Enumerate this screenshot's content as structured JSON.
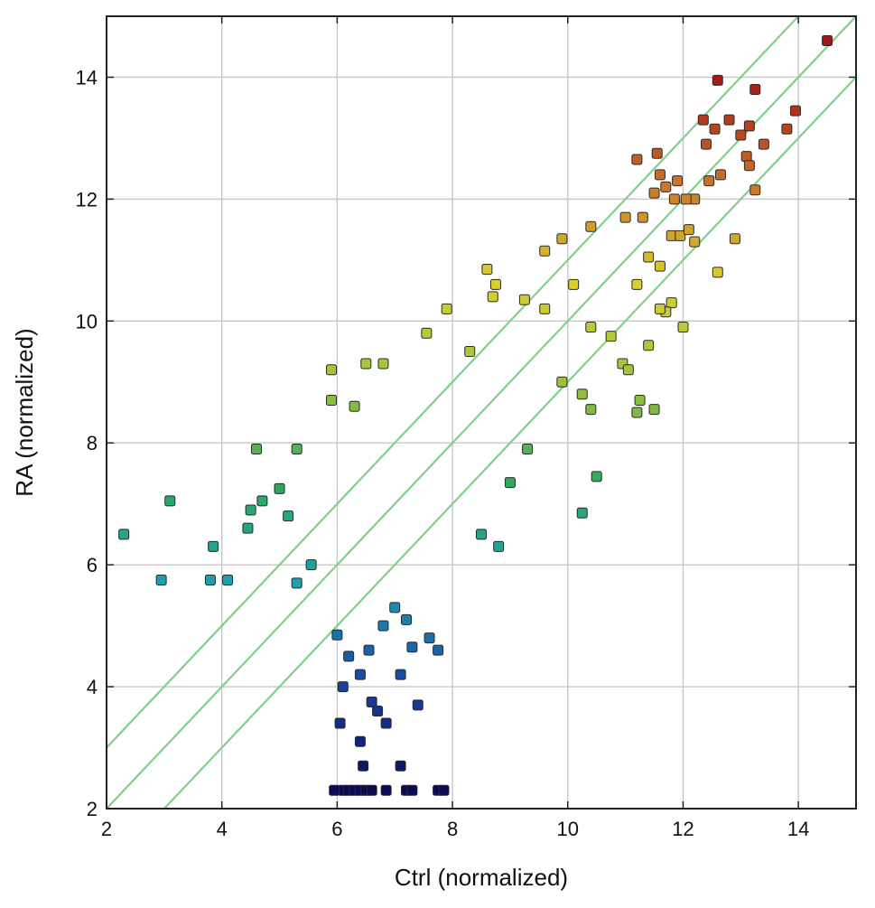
{
  "chart_data": {
    "type": "scatter",
    "title": "",
    "xlabel": "Ctrl (normalized)",
    "ylabel": "RA (normalized)",
    "xlim": [
      2,
      15
    ],
    "ylim": [
      2,
      15
    ],
    "xticks": [
      2,
      4,
      6,
      8,
      10,
      12,
      14
    ],
    "yticks": [
      2,
      4,
      6,
      8,
      10,
      12,
      14
    ],
    "xtick_labels": [
      "2",
      "4",
      "6",
      "8",
      "10",
      "12",
      "14"
    ],
    "ytick_labels": [
      "2",
      "4",
      "6",
      "8",
      "10",
      "12",
      "14"
    ],
    "grid": true,
    "marker": "square",
    "color_by": "y",
    "colormap": [
      "#0b0b55",
      "#1a3fa0",
      "#1c9fb0",
      "#2ea860",
      "#9cc23a",
      "#d8d030",
      "#c8702a",
      "#a01818"
    ],
    "reference_lines": [
      {
        "slope": 1,
        "intercept": 1,
        "color": "#7fd08a"
      },
      {
        "slope": 1,
        "intercept": 0,
        "color": "#7fd08a"
      },
      {
        "slope": 1,
        "intercept": -1,
        "color": "#7fd08a"
      }
    ],
    "points": [
      [
        14.5,
        14.6
      ],
      [
        12.6,
        13.95
      ],
      [
        13.25,
        13.8
      ],
      [
        12.35,
        13.3
      ],
      [
        12.8,
        13.3
      ],
      [
        13.95,
        13.45
      ],
      [
        12.55,
        13.15
      ],
      [
        13.0,
        13.05
      ],
      [
        13.15,
        13.2
      ],
      [
        13.8,
        13.15
      ],
      [
        11.2,
        12.65
      ],
      [
        11.55,
        12.75
      ],
      [
        13.1,
        12.7
      ],
      [
        13.4,
        12.9
      ],
      [
        12.4,
        12.9
      ],
      [
        13.15,
        12.55
      ],
      [
        11.6,
        12.4
      ],
      [
        11.9,
        12.3
      ],
      [
        12.2,
        12.0
      ],
      [
        12.45,
        12.3
      ],
      [
        12.65,
        12.4
      ],
      [
        13.25,
        12.15
      ],
      [
        11.7,
        12.2
      ],
      [
        12.05,
        12.0
      ],
      [
        11.85,
        12.0
      ],
      [
        11.5,
        12.1
      ],
      [
        11.3,
        11.7
      ],
      [
        11.0,
        11.7
      ],
      [
        11.8,
        11.4
      ],
      [
        12.2,
        11.3
      ],
      [
        12.9,
        11.35
      ],
      [
        11.95,
        11.4
      ],
      [
        11.4,
        11.05
      ],
      [
        11.6,
        10.9
      ],
      [
        12.6,
        10.8
      ],
      [
        12.1,
        11.5
      ],
      [
        11.2,
        10.6
      ],
      [
        11.8,
        10.3
      ],
      [
        12.0,
        9.9
      ],
      [
        11.7,
        10.15
      ],
      [
        11.6,
        10.2
      ],
      [
        11.4,
        9.6
      ],
      [
        10.95,
        9.3
      ],
      [
        11.05,
        9.2
      ],
      [
        11.25,
        8.7
      ],
      [
        11.5,
        8.55
      ],
      [
        11.2,
        8.5
      ],
      [
        10.75,
        9.75
      ],
      [
        10.4,
        9.9
      ],
      [
        9.6,
        11.15
      ],
      [
        9.9,
        11.35
      ],
      [
        10.4,
        11.55
      ],
      [
        10.1,
        10.6
      ],
      [
        9.6,
        10.2
      ],
      [
        9.25,
        10.35
      ],
      [
        8.6,
        10.85
      ],
      [
        8.75,
        10.6
      ],
      [
        8.7,
        10.4
      ],
      [
        7.9,
        10.2
      ],
      [
        7.55,
        9.8
      ],
      [
        8.3,
        9.5
      ],
      [
        9.9,
        9.0
      ],
      [
        10.4,
        8.55
      ],
      [
        10.25,
        8.8
      ],
      [
        10.5,
        7.45
      ],
      [
        10.25,
        6.85
      ],
      [
        9.3,
        7.9
      ],
      [
        9.0,
        7.35
      ],
      [
        8.5,
        6.5
      ],
      [
        8.8,
        6.3
      ],
      [
        6.5,
        9.3
      ],
      [
        6.8,
        9.3
      ],
      [
        5.9,
        9.2
      ],
      [
        5.9,
        8.7
      ],
      [
        6.3,
        8.6
      ],
      [
        4.6,
        7.9
      ],
      [
        5.3,
        7.9
      ],
      [
        5.0,
        7.25
      ],
      [
        4.7,
        7.05
      ],
      [
        4.5,
        6.9
      ],
      [
        3.1,
        7.05
      ],
      [
        2.3,
        6.5
      ],
      [
        3.85,
        6.3
      ],
      [
        2.95,
        5.75
      ],
      [
        3.8,
        5.75
      ],
      [
        4.1,
        5.75
      ],
      [
        4.45,
        6.6
      ],
      [
        5.15,
        6.8
      ],
      [
        5.55,
        6.0
      ],
      [
        5.3,
        5.7
      ],
      [
        6.0,
        4.85
      ],
      [
        6.2,
        4.5
      ],
      [
        6.4,
        4.2
      ],
      [
        6.1,
        4.0
      ],
      [
        6.6,
        3.75
      ],
      [
        6.7,
        3.6
      ],
      [
        6.85,
        3.4
      ],
      [
        6.05,
        3.4
      ],
      [
        6.4,
        3.1
      ],
      [
        6.45,
        2.7
      ],
      [
        7.1,
        2.7
      ],
      [
        7.4,
        3.7
      ],
      [
        7.1,
        4.2
      ],
      [
        7.3,
        4.65
      ],
      [
        7.6,
        4.8
      ],
      [
        7.75,
        4.6
      ],
      [
        7.2,
        5.1
      ],
      [
        7.0,
        5.3
      ],
      [
        6.8,
        5.0
      ],
      [
        6.55,
        4.6
      ],
      [
        6.1,
        2.3
      ],
      [
        6.2,
        2.3
      ],
      [
        6.3,
        2.3
      ],
      [
        6.4,
        2.3
      ],
      [
        6.5,
        2.3
      ],
      [
        6.6,
        2.3
      ],
      [
        6.85,
        2.3
      ],
      [
        7.2,
        2.3
      ],
      [
        7.3,
        2.3
      ],
      [
        7.75,
        2.3
      ],
      [
        7.85,
        2.3
      ],
      [
        5.95,
        2.3
      ]
    ]
  }
}
